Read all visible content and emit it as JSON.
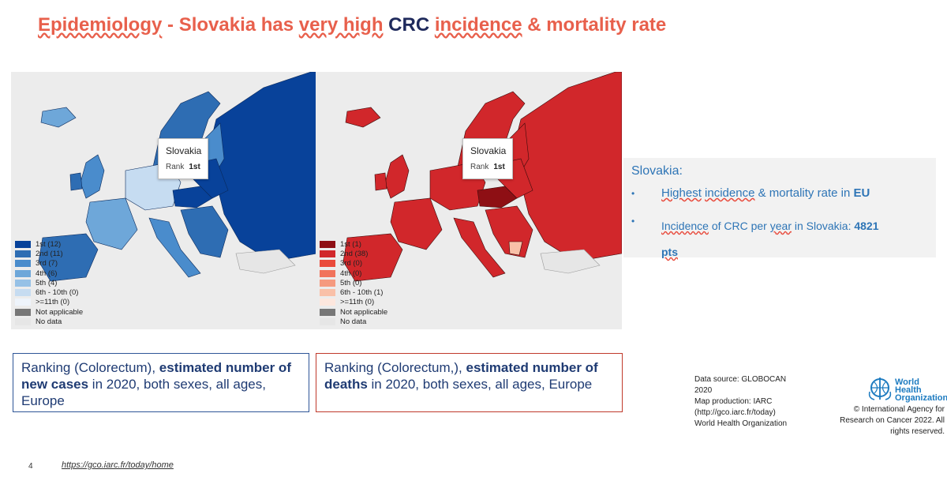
{
  "title": {
    "part1": "Epidemiology",
    "sep": " - ",
    "part2": "Slovakia has",
    "part3": "very high",
    "part4": "CRC",
    "part5": "incidence",
    "part6": "& mortality rate"
  },
  "map_left": {
    "tooltip_country": "Slovakia",
    "tooltip_rank_label": "Rank",
    "tooltip_rank_value": "1st",
    "legend": [
      {
        "label": "1st (12)",
        "color": "#08429a"
      },
      {
        "label": "2nd (11)",
        "color": "#2e6db3"
      },
      {
        "label": "3rd (7)",
        "color": "#4a8ccc"
      },
      {
        "label": "4th (6)",
        "color": "#6ea7d9"
      },
      {
        "label": "5th (4)",
        "color": "#96c1e6"
      },
      {
        "label": "6th - 10th (0)",
        "color": "#c6dcf1"
      },
      {
        "label": ">=11th (0)",
        "color": "#eef4fb"
      },
      {
        "label": "Not applicable",
        "color": "#777777"
      },
      {
        "label": "No data",
        "color": "#e6e6e6"
      }
    ]
  },
  "map_right": {
    "tooltip_country": "Slovakia",
    "tooltip_rank_label": "Rank",
    "tooltip_rank_value": "1st",
    "legend": [
      {
        "label": "1st (1)",
        "color": "#8e0f14"
      },
      {
        "label": "2nd (38)",
        "color": "#d1272b"
      },
      {
        "label": "3rd (0)",
        "color": "#ea4a3b"
      },
      {
        "label": "4th (0)",
        "color": "#f1735c"
      },
      {
        "label": "5th (0)",
        "color": "#f59a7f"
      },
      {
        "label": "6th - 10th (1)",
        "color": "#f9c0a8"
      },
      {
        "label": ">=11th (0)",
        "color": "#fde7de"
      },
      {
        "label": "Not applicable",
        "color": "#777777"
      },
      {
        "label": "No data",
        "color": "#e6e6e6"
      }
    ]
  },
  "caption_left": {
    "text1": "Ranking (Colorectum), ",
    "bold1": "estimated number of new cases",
    "text2": " in 2020, both sexes, all ages, Europe"
  },
  "caption_right": {
    "text1": "Ranking (Colorectum,), ",
    "bold1": "estimated number of deaths",
    "text2": " in 2020, both sexes, all ages, Europe"
  },
  "slovakia_box": {
    "title": "Slovakia:",
    "bullet_char": "•",
    "bullet1_pre": "Highest",
    "bullet1_mid": "incidence",
    "bullet1_post": " & mortality rate in ",
    "bullet1_bold": "EU",
    "bullet2_pre": "Incidence",
    "bullet2_mid": " of CRC per ",
    "bullet2_year": "year",
    "bullet2_post": " in Slovakia: ",
    "bullet2_bold": "4821",
    "bullet2_pts": "pts"
  },
  "source": {
    "line1": "Data source: GLOBOCAN",
    "line2": "2020",
    "line3": "Map production: IARC",
    "line4": "(http://gco.iarc.fr/today)",
    "line5": "World Health Organization"
  },
  "who": {
    "line1": "World Health",
    "line2": "Organization",
    "copyright1": "© International Agency for",
    "copyright2": "Research on Cancer 2022. All",
    "copyright3": "rights reserved."
  },
  "footer": {
    "page_number": "4",
    "url": "https://gco.iarc.fr/today/home"
  }
}
